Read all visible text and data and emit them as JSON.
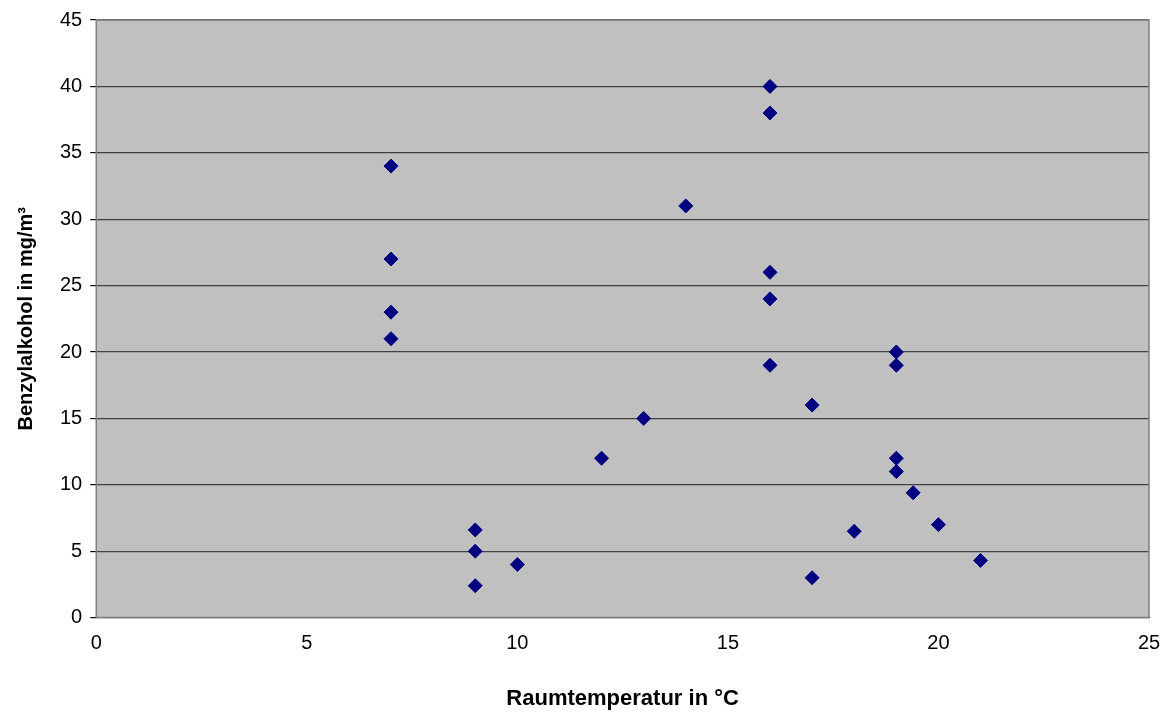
{
  "chart_data": {
    "type": "scatter",
    "xlabel": "Raumtemperatur in °C",
    "ylabel": "Benzylalkohol in mg/m³",
    "x": [
      7,
      7,
      7,
      7,
      9,
      9,
      9,
      10,
      12,
      13,
      14,
      16,
      16,
      16,
      16,
      16,
      17,
      17,
      18,
      19,
      19,
      19,
      19,
      19.4,
      20,
      21
    ],
    "series": [
      {
        "color": "#000080",
        "values": [
          34,
          27,
          23,
          21,
          6.6,
          5,
          2.4,
          4,
          12,
          15,
          31,
          40,
          38,
          26,
          24,
          19,
          16,
          3,
          6.5,
          20,
          19,
          12,
          11,
          9.4,
          7,
          4.3
        ]
      }
    ],
    "xlim": [
      0,
      25
    ],
    "xticks": [
      0,
      5,
      10,
      15,
      20,
      25
    ],
    "ylim": [
      0,
      45
    ],
    "yticks": [
      0,
      5,
      10,
      15,
      20,
      25,
      30,
      35,
      40,
      45
    ],
    "grid": "y",
    "marker": "diamond",
    "legend": false
  }
}
